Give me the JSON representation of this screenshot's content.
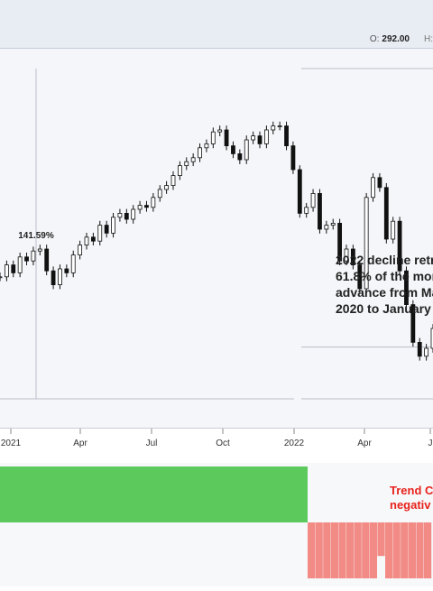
{
  "header": {
    "ohlc_label": "O:",
    "ohlc_value": "292.00",
    "next_label": "H:"
  },
  "chart_data": [
    {
      "type": "candlestick",
      "x_ticks": [
        "2021",
        "Apr",
        "Jul",
        "Oct",
        "2022",
        "Apr",
        "J"
      ],
      "closes": [
        236,
        242,
        238,
        246,
        244,
        249,
        250,
        239,
        232,
        240,
        238,
        247,
        252,
        256,
        254,
        262,
        258,
        266,
        268,
        265,
        270,
        272,
        271,
        276,
        280,
        282,
        287,
        292,
        294,
        296,
        301,
        303,
        309,
        310,
        302,
        298,
        295,
        305,
        307,
        303,
        310,
        312,
        312,
        302,
        290,
        268,
        271,
        278,
        260,
        262,
        263,
        244,
        250,
        242,
        230,
        276,
        286,
        281,
        255,
        264,
        239,
        222,
        203,
        196,
        200,
        210
      ],
      "line_price": 200.64,
      "line_labels": [
        "141.59%"
      ],
      "annotations": [
        "2022 decline retr",
        "61.8% of the mor",
        "advance from Ma",
        "2020 to January 2"
      ]
    },
    {
      "type": "bar",
      "label_lines": [
        "Trend C",
        "negativ"
      ],
      "positive_color": "#5cc95c",
      "negative_color": "#f28b86",
      "zero_value": 0,
      "values": [
        1,
        -1,
        -1,
        -1,
        -1,
        -1,
        -1,
        -1,
        -1,
        -1,
        -0.6,
        -1,
        -1,
        -1,
        -1,
        -1,
        -1
      ]
    }
  ],
  "colors": {
    "candle": "#111111",
    "gridline": "#b9bec8",
    "label_red": "#e8221b"
  }
}
